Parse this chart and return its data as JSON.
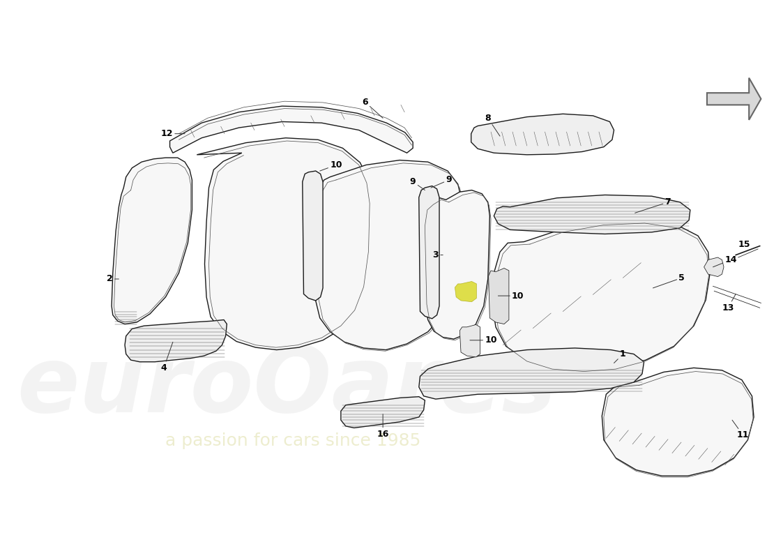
{
  "bg_color": "#ffffff",
  "lc": "#1a1a1a",
  "lc_inner": "#555555",
  "fc_main": "#f7f7f7",
  "fc_mid": "#efefef",
  "yellow": "#d4d400",
  "wm1_color": "#cccccc",
  "wm2_color": "#e0e0b0",
  "arrow_fc": "#d8d8d8",
  "arrow_ec": "#666666",
  "label_fs": 9,
  "lw": 1.0,
  "lw_t": 0.55,
  "lw_hatch": 0.35
}
